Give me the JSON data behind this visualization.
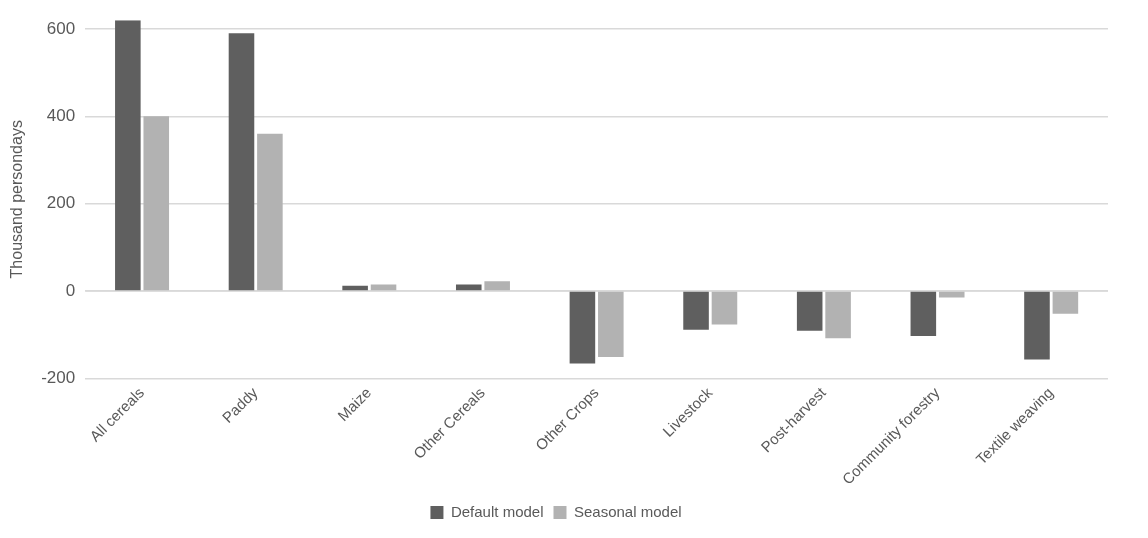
{
  "chart_data": {
    "type": "bar",
    "ylabel": "Thousand persondays",
    "categories": [
      "All cereals",
      "Paddy",
      "Maize",
      "Other Cereals",
      "Other Crops",
      "Livestock",
      "Post-harvest",
      "Community forestry",
      "Textile weaving"
    ],
    "series": [
      {
        "name": "Default model",
        "color": "#5f5f5f",
        "values": [
          620,
          590,
          12,
          15,
          -166,
          -89,
          -91,
          -103,
          -157
        ]
      },
      {
        "name": "Seasonal model",
        "color": "#b2b2b2",
        "values": [
          400,
          360,
          15,
          22,
          -151,
          -77,
          -108,
          -15,
          -52
        ]
      }
    ],
    "ylim": [
      -200,
      620
    ],
    "yticks": [
      -200,
      0,
      200,
      400,
      600
    ],
    "grid": "y",
    "legend": "bottom"
  }
}
